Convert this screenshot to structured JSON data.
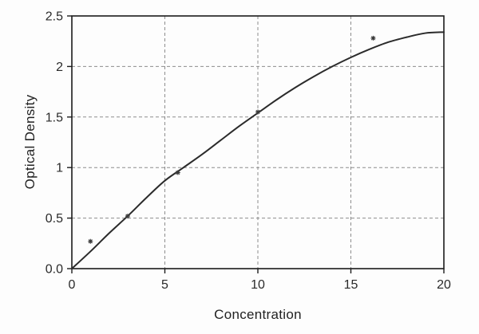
{
  "page": {
    "background": "#fdfdfd"
  },
  "chart_data": {
    "type": "line",
    "title": "",
    "xlabel": "Concentration",
    "ylabel": "Optical Density",
    "xlim": [
      0,
      20
    ],
    "ylim": [
      0,
      2.5
    ],
    "legend": "none",
    "grid": {
      "style": "dashed",
      "color": "#8d8d8d",
      "x_values": [
        5,
        10,
        15
      ],
      "y_values": [
        0.5,
        1,
        1.5,
        2
      ]
    },
    "x_ticks": {
      "values": [
        0,
        5,
        10,
        15,
        20
      ],
      "labels": [
        "0",
        "5",
        "10",
        "15",
        "20"
      ]
    },
    "y_ticks": {
      "values": [
        0,
        0.5,
        1,
        1.5,
        2,
        2.5
      ],
      "labels": [
        "0.0",
        "0.5",
        "1",
        "1.5",
        "2",
        "2.5"
      ]
    },
    "axis_color": "#1c1c1c",
    "text_color": "#2a2a2a",
    "series": [
      {
        "name": "fit_curve",
        "type": "line",
        "color": "#2b2b2b",
        "x": [
          0,
          1,
          2,
          3,
          4,
          5,
          6,
          7,
          8,
          9,
          10,
          11,
          12,
          13,
          14,
          15,
          16,
          17,
          18,
          19,
          20
        ],
        "y": [
          0.0,
          0.17,
          0.35,
          0.52,
          0.7,
          0.87,
          1.0,
          1.13,
          1.27,
          1.41,
          1.54,
          1.67,
          1.79,
          1.9,
          2.0,
          2.09,
          2.17,
          2.24,
          2.29,
          2.33,
          2.34
        ]
      },
      {
        "name": "data_points",
        "type": "scatter",
        "marker": "asterisk",
        "color": "#3a3a3a",
        "x": [
          1,
          3,
          5.7,
          10,
          16.2
        ],
        "y": [
          0.27,
          0.52,
          0.95,
          1.55,
          2.28
        ]
      }
    ]
  }
}
